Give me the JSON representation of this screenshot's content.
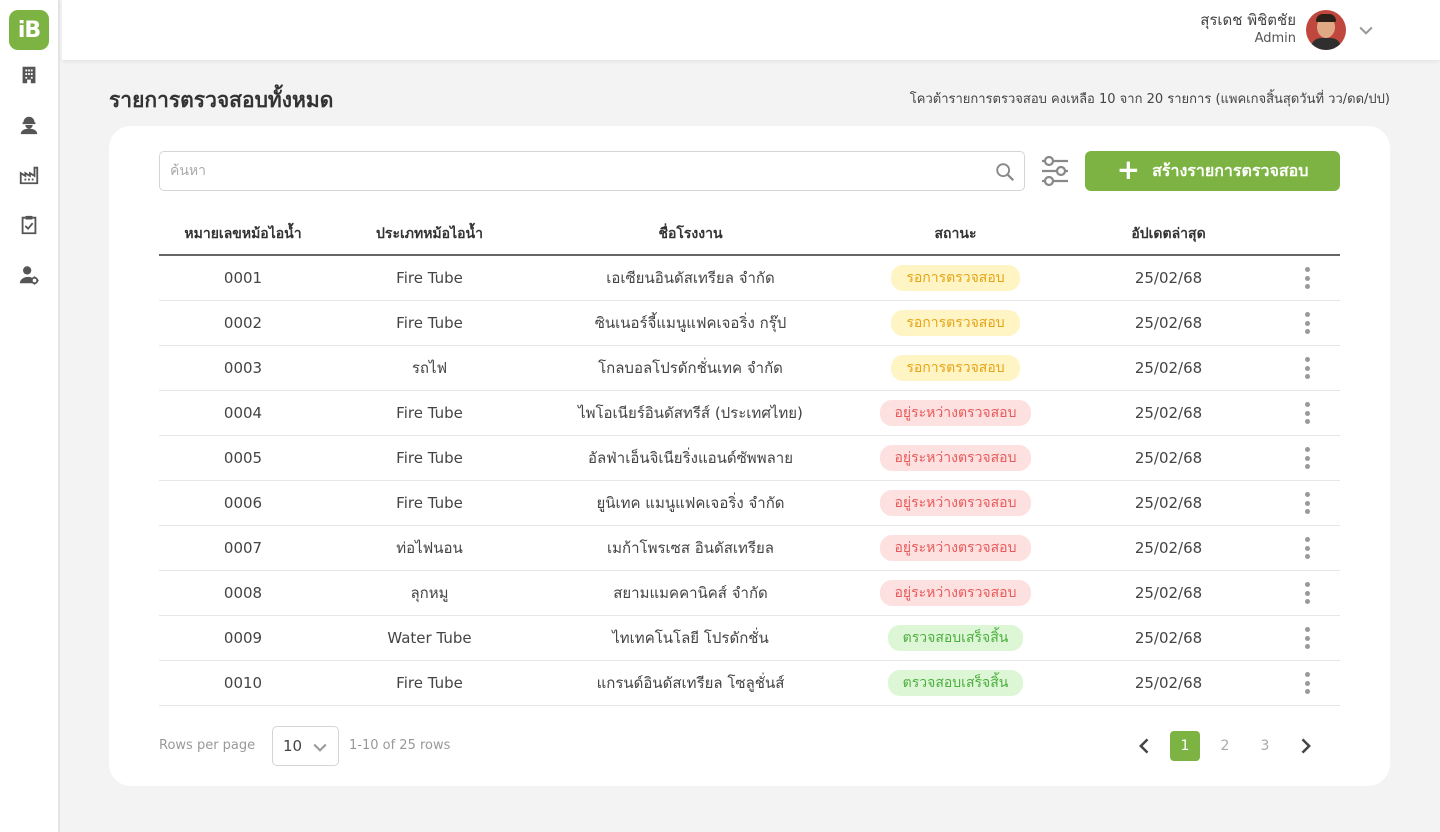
{
  "brand": {
    "logo_text": "iB",
    "accent": "#7cb342"
  },
  "sidebar": {
    "items": [
      {
        "icon": "building-icon"
      },
      {
        "icon": "worker-icon"
      },
      {
        "icon": "factory-icon"
      },
      {
        "icon": "clipboard-check-icon"
      },
      {
        "icon": "user-settings-icon"
      }
    ]
  },
  "header": {
    "user_name": "สุรเดช พิชิตชัย",
    "user_role": "Admin"
  },
  "page": {
    "title": "รายการตรวจสอบทั้งหมด",
    "quota": "โควต้ารายการตรวจสอบ คงเหลือ 10 จาก 20 รายการ (แพคเกจสิ้นสุดวันที่ วว/ดด/ปป)"
  },
  "toolbar": {
    "search_placeholder": "ค้นหา",
    "create_label": "สร้างรายการตรวจสอบ"
  },
  "table": {
    "columns": [
      "หมายเลขหม้อไอน้ำ",
      "ประเภทหม้อไอน้ำ",
      "ชื่อโรงงาน",
      "สถานะ",
      "อัปเดตล่าสุด"
    ],
    "rows": [
      {
        "id": "0001",
        "type": "Fire Tube",
        "factory": "เอเซียนอินดัสเทรียล จำกัด",
        "status": "รอการตรวจสอบ",
        "status_kind": "pending",
        "updated": "25/02/68"
      },
      {
        "id": "0002",
        "type": "Fire Tube",
        "factory": "ซินเนอร์จี้แมนูแฟคเจอริ่ง กรุ๊ป",
        "status": "รอการตรวจสอบ",
        "status_kind": "pending",
        "updated": "25/02/68"
      },
      {
        "id": "0003",
        "type": "รถไฟ",
        "factory": "โกลบอลโปรดักชั่นเทค จำกัด",
        "status": "รอการตรวจสอบ",
        "status_kind": "pending",
        "updated": "25/02/68"
      },
      {
        "id": "0004",
        "type": "Fire Tube",
        "factory": "ไพโอเนียร์อินดัสทรีส์ (ประเทศไทย)",
        "status": "อยู่ระหว่างตรวจสอบ",
        "status_kind": "progress",
        "updated": "25/02/68"
      },
      {
        "id": "0005",
        "type": "Fire Tube",
        "factory": "อัลฟ่าเอ็นจิเนียริ่งแอนด์ซัพพลาย",
        "status": "อยู่ระหว่างตรวจสอบ",
        "status_kind": "progress",
        "updated": "25/02/68"
      },
      {
        "id": "0006",
        "type": "Fire Tube",
        "factory": "ยูนิเทค แมนูแฟคเจอริ่ง จำกัด",
        "status": "อยู่ระหว่างตรวจสอบ",
        "status_kind": "progress",
        "updated": "25/02/68"
      },
      {
        "id": "0007",
        "type": "ท่อไฟนอน",
        "factory": "เมก้าโพรเซส อินดัสเทรียล",
        "status": "อยู่ระหว่างตรวจสอบ",
        "status_kind": "progress",
        "updated": "25/02/68"
      },
      {
        "id": "0008",
        "type": "ลุกหมู",
        "factory": "สยามแมคคานิคส์ จำกัด",
        "status": "อยู่ระหว่างตรวจสอบ",
        "status_kind": "progress",
        "updated": "25/02/68"
      },
      {
        "id": "0009",
        "type": "Water Tube",
        "factory": "ไทเทคโนโลยี โปรดักชั่น",
        "status": "ตรวจสอบเสร็จสิ้น",
        "status_kind": "done",
        "updated": "25/02/68"
      },
      {
        "id": "0010",
        "type": "Fire Tube",
        "factory": "แกรนด์อินดัสเทรียล โซลูชั่นส์",
        "status": "ตรวจสอบเสร็จสิ้น",
        "status_kind": "done",
        "updated": "25/02/68"
      }
    ]
  },
  "footer": {
    "rows_per_page_label": "Rows per page",
    "rows_per_page_value": "10",
    "range_text": "1-10 of 25 rows",
    "pages": [
      "1",
      "2",
      "3"
    ],
    "current_page": "1"
  }
}
